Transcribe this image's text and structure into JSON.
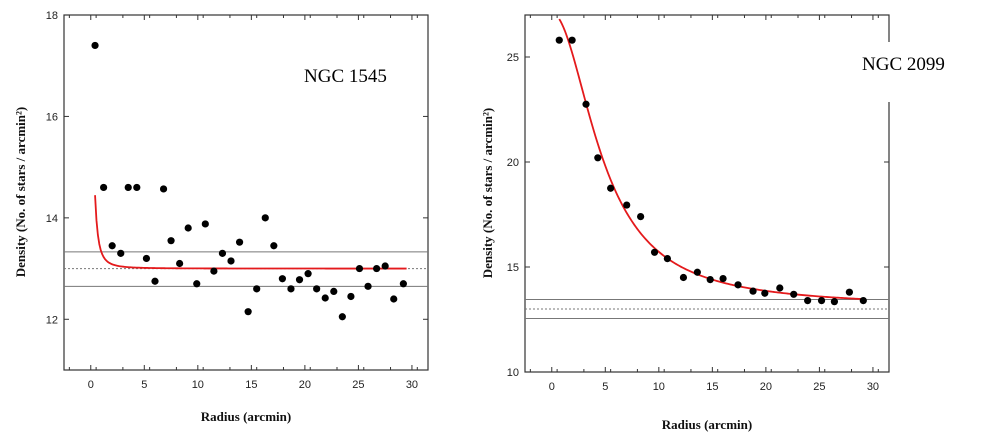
{
  "chart_data": [
    {
      "type": "scatter",
      "title": "NGC 1545",
      "xlabel": "Radius (arcmin)",
      "ylabel": "Density (No. of stars / arcmin²)",
      "xlim": [
        -2.5,
        31.5
      ],
      "ylim": [
        11,
        18
      ],
      "xticks": [
        "0",
        "5",
        "10",
        "15",
        "20",
        "25",
        "30"
      ],
      "xtick_values": [
        0,
        5,
        10,
        15,
        20,
        25,
        30
      ],
      "yticks": [
        "12",
        "14",
        "16",
        "18"
      ],
      "ytick_values": [
        12,
        14,
        16,
        18
      ],
      "points": [
        [
          0.4,
          17.4
        ],
        [
          1.2,
          14.6
        ],
        [
          2.0,
          13.45
        ],
        [
          2.8,
          13.3
        ],
        [
          3.5,
          14.6
        ],
        [
          4.3,
          14.6
        ],
        [
          5.2,
          13.2
        ],
        [
          6.0,
          12.75
        ],
        [
          6.8,
          14.57
        ],
        [
          7.5,
          13.55
        ],
        [
          8.3,
          13.1
        ],
        [
          9.1,
          13.8
        ],
        [
          9.9,
          12.7
        ],
        [
          10.7,
          13.88
        ],
        [
          11.5,
          12.95
        ],
        [
          12.3,
          13.3
        ],
        [
          13.1,
          13.15
        ],
        [
          13.9,
          13.52
        ],
        [
          14.7,
          12.15
        ],
        [
          15.5,
          12.6
        ],
        [
          16.3,
          14.0
        ],
        [
          17.1,
          13.45
        ],
        [
          17.9,
          12.8
        ],
        [
          18.7,
          12.6
        ],
        [
          19.5,
          12.78
        ],
        [
          20.3,
          12.9
        ],
        [
          21.1,
          12.6
        ],
        [
          21.9,
          12.42
        ],
        [
          22.7,
          12.55
        ],
        [
          23.5,
          12.05
        ],
        [
          24.3,
          12.45
        ],
        [
          25.1,
          13.0
        ],
        [
          25.9,
          12.65
        ],
        [
          26.7,
          13.0
        ],
        [
          27.5,
          13.05
        ],
        [
          28.3,
          12.4
        ],
        [
          29.2,
          12.7
        ]
      ],
      "fit": {
        "color": "#e41a1c",
        "background": 13.0,
        "amplitude": 4.4,
        "core_radius": 0.28,
        "x_range": [
          0.4,
          29.5
        ]
      },
      "reference_lines": [
        {
          "y": 13.33,
          "style": "solid"
        },
        {
          "y": 13.0,
          "style": "dotted"
        },
        {
          "y": 12.65,
          "style": "solid"
        }
      ],
      "grid": false
    },
    {
      "type": "scatter",
      "title": "NGC 2099",
      "xlabel": "Radius (arcmin)",
      "ylabel": "Density (No. of stars / arcmin²)",
      "xlim": [
        -2.5,
        31.5
      ],
      "ylim": [
        10,
        27
      ],
      "xticks": [
        "0",
        "5",
        "10",
        "15",
        "20",
        "25",
        "30"
      ],
      "xtick_values": [
        0,
        5,
        10,
        15,
        20,
        25,
        30
      ],
      "yticks": [
        "10",
        "15",
        "20",
        "25"
      ],
      "ytick_values": [
        10,
        15,
        20,
        25
      ],
      "points": [
        [
          0.7,
          25.8
        ],
        [
          1.9,
          25.8
        ],
        [
          3.2,
          22.75
        ],
        [
          4.3,
          20.2
        ],
        [
          5.5,
          18.75
        ],
        [
          7.0,
          17.95
        ],
        [
          8.3,
          17.4
        ],
        [
          9.6,
          15.7
        ],
        [
          10.8,
          15.4
        ],
        [
          12.3,
          14.5
        ],
        [
          13.6,
          14.75
        ],
        [
          14.8,
          14.4
        ],
        [
          16.0,
          14.45
        ],
        [
          17.4,
          14.15
        ],
        [
          18.8,
          13.85
        ],
        [
          19.9,
          13.75
        ],
        [
          21.3,
          14.0
        ],
        [
          22.6,
          13.7
        ],
        [
          23.9,
          13.4
        ],
        [
          25.2,
          13.4
        ],
        [
          26.4,
          13.35
        ],
        [
          27.8,
          13.8
        ],
        [
          29.1,
          13.4
        ]
      ],
      "fit": {
        "color": "#e41a1c",
        "background": 13.1,
        "amplitude": 14.0,
        "core_radius": 4.8,
        "x_range": [
          0.7,
          29.3
        ]
      },
      "reference_lines": [
        {
          "y": 13.45,
          "style": "solid"
        },
        {
          "y": 13.0,
          "style": "dotted"
        },
        {
          "y": 12.55,
          "style": "solid"
        }
      ],
      "grid": false
    }
  ]
}
